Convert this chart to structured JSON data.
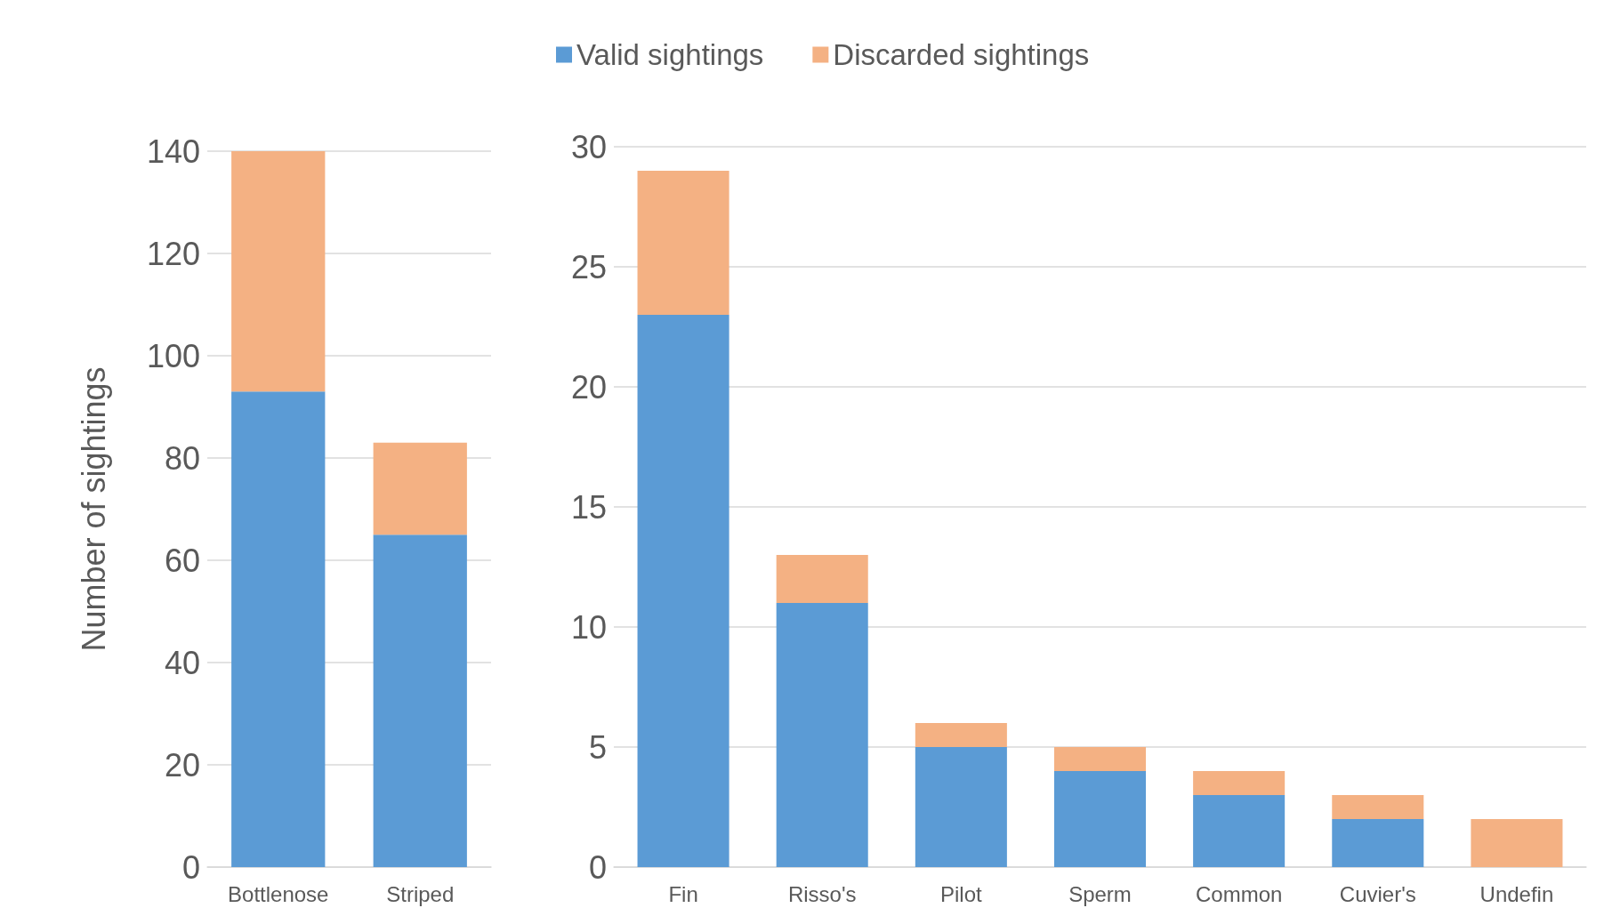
{
  "chart_data": [
    {
      "type": "bar",
      "stacked": true,
      "categories": [
        "Bottlenose",
        "Striped"
      ],
      "ylabel": "Number of sightings",
      "ylim": [
        0,
        140
      ],
      "yticks": [
        0,
        20,
        40,
        60,
        80,
        100,
        120,
        140
      ],
      "grid": "y",
      "legend": "top",
      "series": [
        {
          "name": "Valid sightings",
          "color": "#5b9bd5",
          "values": [
            93,
            65
          ]
        },
        {
          "name": "Discarded sightings",
          "color": "#f4b183",
          "values": [
            47,
            18
          ]
        }
      ]
    },
    {
      "type": "bar",
      "stacked": true,
      "categories": [
        "Fin",
        "Risso's",
        "Pilot",
        "Sperm",
        "Common",
        "Cuvier's",
        "Undefin"
      ],
      "ylim": [
        0,
        30
      ],
      "yticks": [
        0,
        5,
        10,
        15,
        20,
        25,
        30
      ],
      "grid": "y",
      "series": [
        {
          "color": "#5b9bd5",
          "values": [
            23,
            11,
            5,
            4,
            3,
            2,
            0
          ]
        },
        {
          "color": "#f4b183",
          "values": [
            6,
            2,
            1,
            1,
            1,
            1,
            2
          ]
        }
      ]
    }
  ]
}
